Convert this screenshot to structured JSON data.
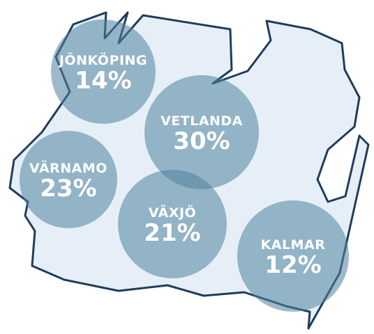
{
  "regions": [
    {
      "name": "JÖNKÖPING",
      "value": "14%"
    },
    {
      "name": "VETLANDA",
      "value": "30%"
    },
    {
      "name": "VÄRNAMO",
      "value": "23%"
    },
    {
      "name": "VÄXJÖ",
      "value": "21%"
    },
    {
      "name": "KALMAR",
      "value": "12%"
    }
  ]
}
